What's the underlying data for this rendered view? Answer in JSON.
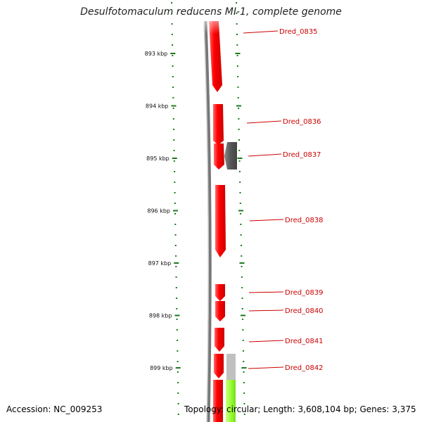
{
  "title": "Desulfotomaculum reducens MI-1, complete genome",
  "footer": {
    "accession": "Accession: NC_009253",
    "stats": "Topology: circular; Length: 3,608,104 bp; Genes: 3,375"
  },
  "colors": {
    "forward_gene": "#ff0000",
    "reverse_gene": "#555555",
    "other_feature": "#99ff33",
    "backbone": "#777777",
    "tick": "#1a7a1a",
    "label": "#cc0000"
  },
  "kbp_marks": [
    {
      "value": 893,
      "label": "893 kbp"
    },
    {
      "value": 894,
      "label": "894 kbp"
    },
    {
      "value": 895,
      "label": "895 kbp"
    },
    {
      "value": 896,
      "label": "896 kbp"
    },
    {
      "value": 897,
      "label": "897 kbp"
    },
    {
      "value": 898,
      "label": "898 kbp"
    },
    {
      "value": 899,
      "label": "899 kbp"
    }
  ],
  "genes": [
    {
      "name": "Dred_0835"
    },
    {
      "name": "Dred_0836"
    },
    {
      "name": "Dred_0837"
    },
    {
      "name": "Dred_0838"
    },
    {
      "name": "Dred_0839"
    },
    {
      "name": "Dred_0840"
    },
    {
      "name": "Dred_0841"
    },
    {
      "name": "Dred_0842"
    }
  ]
}
